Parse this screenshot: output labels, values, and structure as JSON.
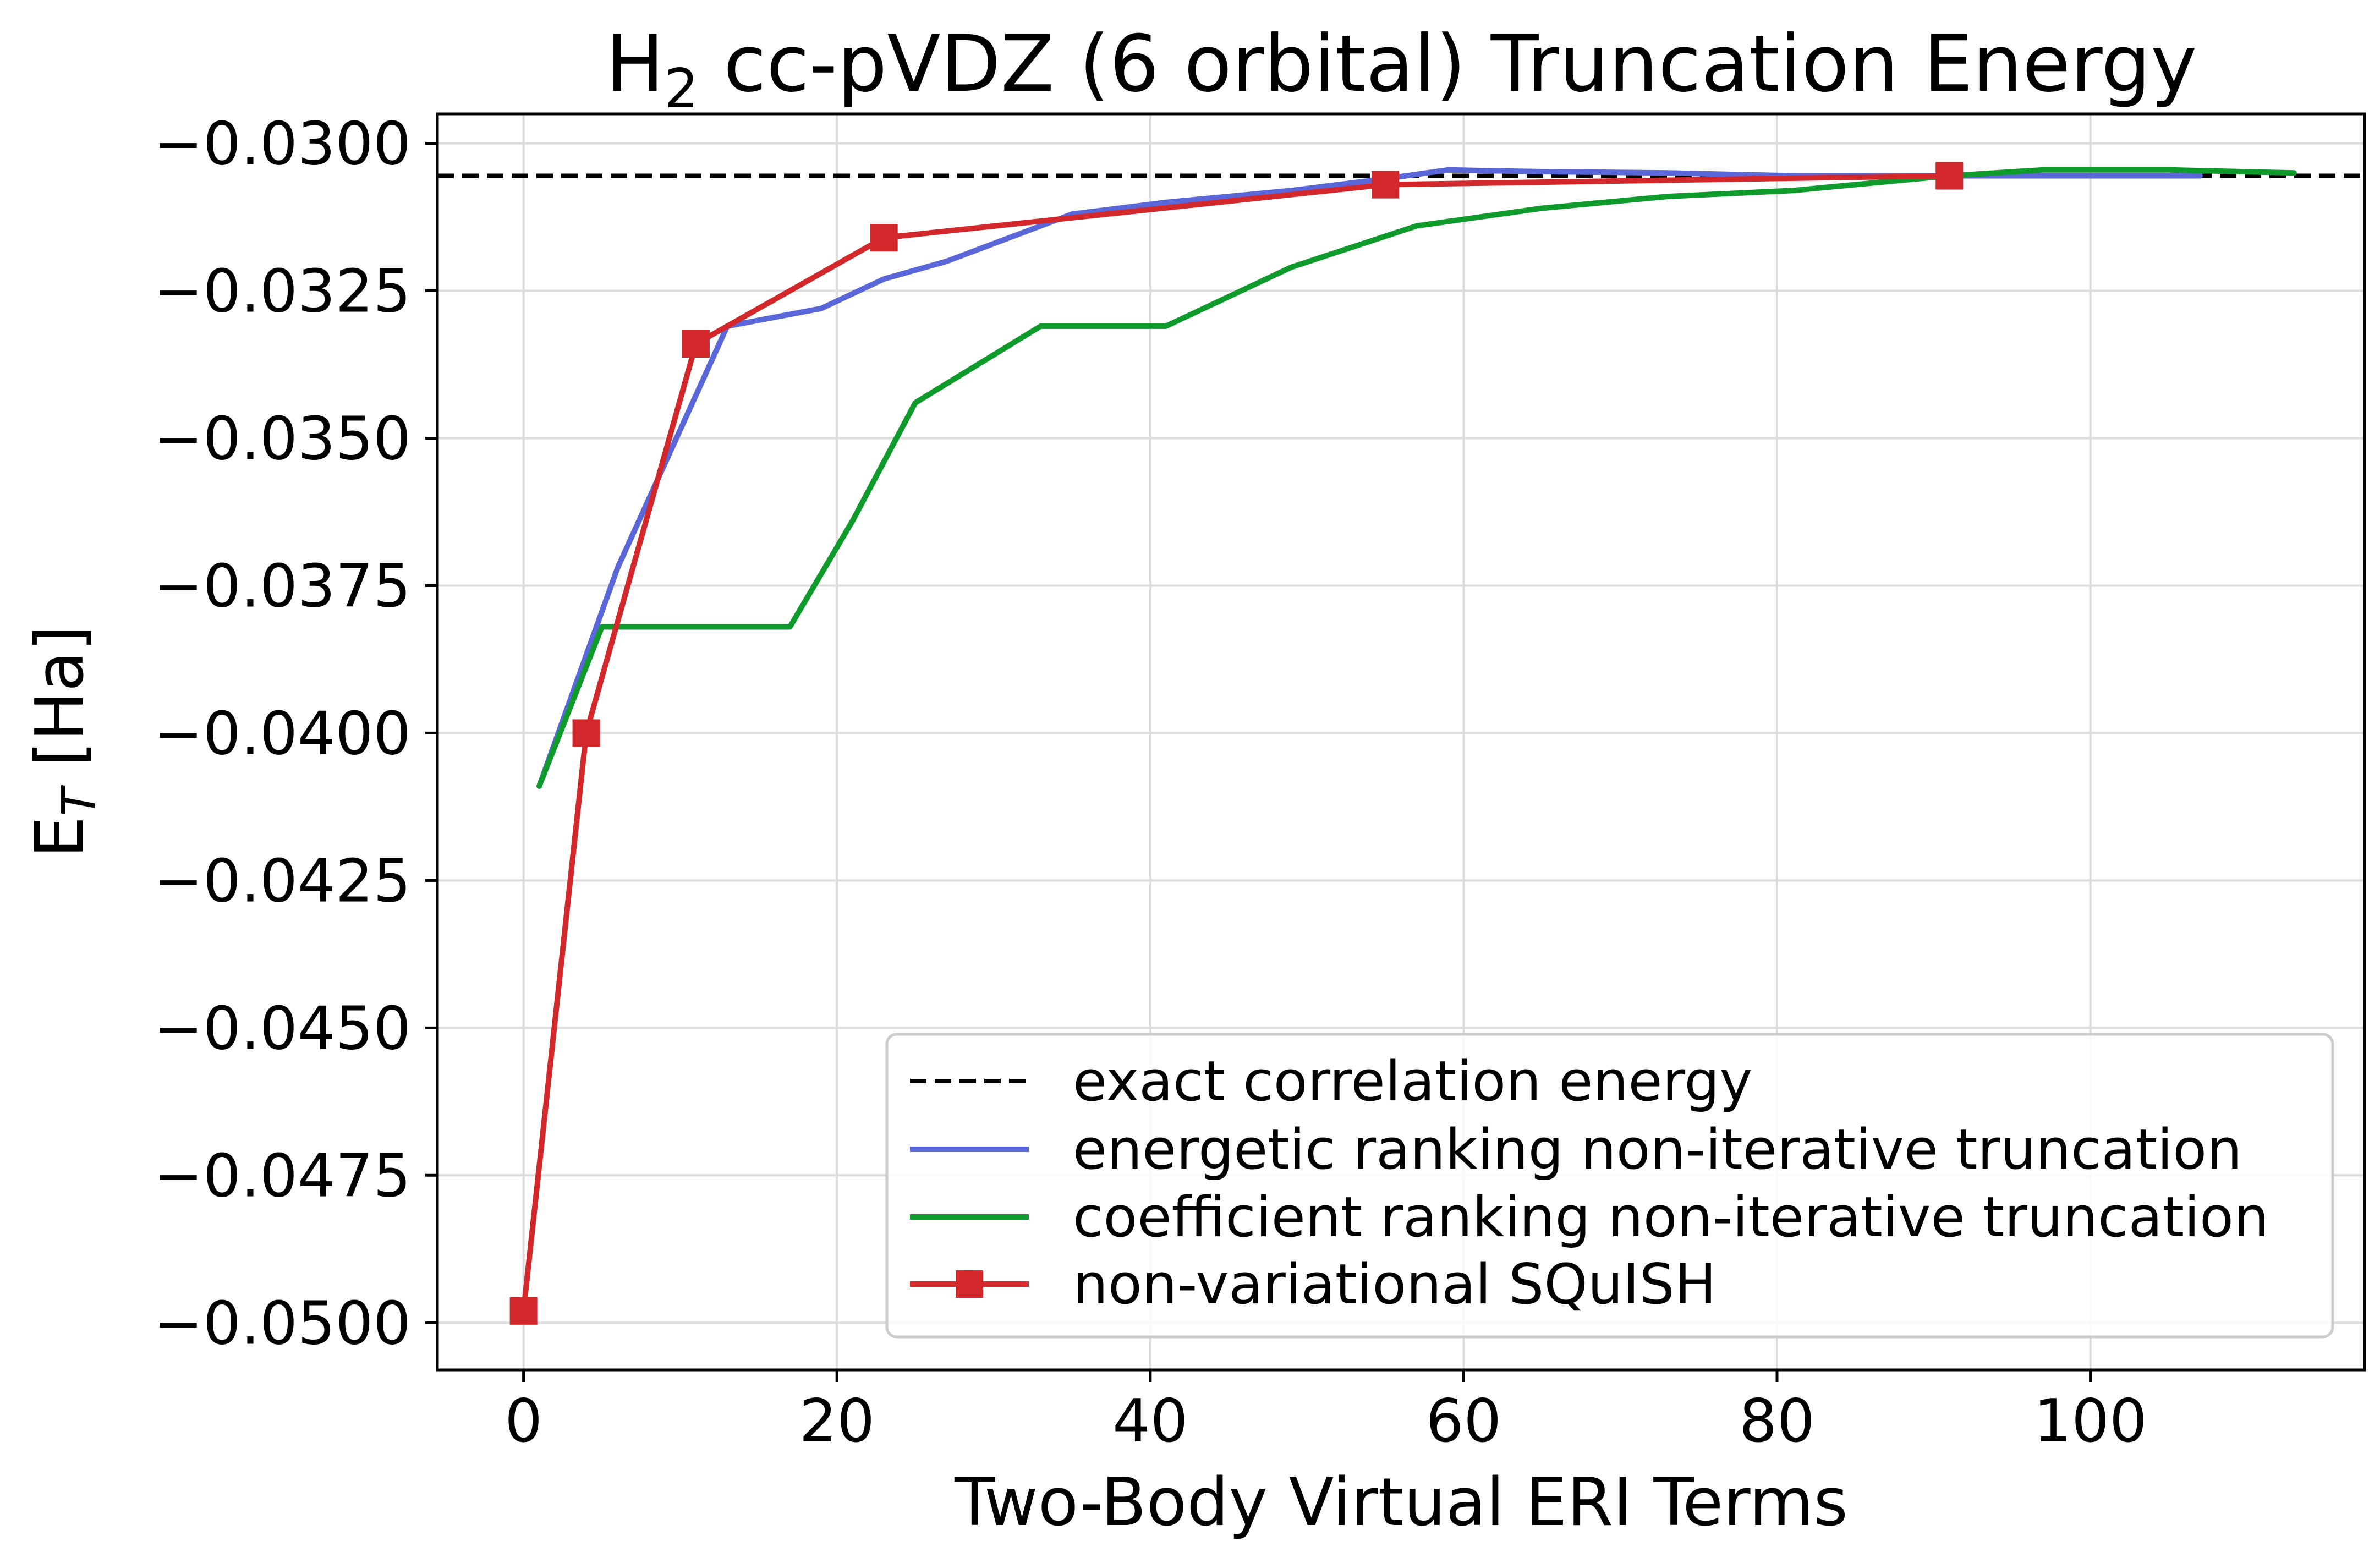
{
  "chart_data": {
    "type": "line",
    "title_main": "H",
    "title_sub": "2",
    "title_rest": " cc-pVDZ (6 orbital) Truncation Energy",
    "xlabel": "Two-Body Virtual ERI Terms",
    "ylabel_main": "E",
    "ylabel_sub": "T",
    "ylabel_rest": " [Ha]",
    "xlim": [
      -5.5,
      117.5
    ],
    "ylim": [
      -0.0508,
      -0.0295
    ],
    "x_ticks": [
      0,
      20,
      40,
      60,
      80,
      100
    ],
    "x_tick_labels": [
      "0",
      "20",
      "40",
      "60",
      "80",
      "100"
    ],
    "y_ticks": [
      -0.05,
      -0.0475,
      -0.045,
      -0.0425,
      -0.04,
      -0.0375,
      -0.035,
      -0.0325,
      -0.03
    ],
    "y_tick_labels": [
      "−0.0500",
      "−0.0475",
      "−0.0450",
      "−0.0425",
      "−0.0400",
      "−0.0375",
      "−0.0350",
      "−0.0325",
      "−0.0300"
    ],
    "grid": true,
    "legend_position": "lower-right",
    "reference_line": {
      "name": "exact correlation energy",
      "y": -0.03055,
      "color": "#000000",
      "style": "dashed"
    },
    "series": [
      {
        "name": "energetic ranking non-iterative truncation",
        "color": "#5a67d8",
        "marker": "none",
        "x": [
          1,
          6,
          13,
          19,
          23,
          27,
          35,
          41,
          49,
          55,
          59,
          65,
          73,
          81,
          91,
          107
        ],
        "y": [
          -0.0409,
          -0.0372,
          -0.0331,
          -0.0328,
          -0.0323,
          -0.032,
          -0.0312,
          -0.031,
          -0.0308,
          -0.0306,
          -0.03045,
          -0.03048,
          -0.0305,
          -0.03055,
          -0.03055,
          -0.03055
        ]
      },
      {
        "name": "coefficient ranking non-iterative truncation",
        "color": "#0f9a2c",
        "marker": "none",
        "x": [
          1,
          5,
          17,
          21,
          25,
          33,
          41,
          49,
          57,
          65,
          73,
          81,
          91,
          97,
          105,
          113
        ],
        "y": [
          -0.0409,
          -0.0382,
          -0.0382,
          -0.0364,
          -0.0344,
          -0.0331,
          -0.0331,
          -0.0321,
          -0.0314,
          -0.0311,
          -0.0309,
          -0.0308,
          -0.03055,
          -0.03045,
          -0.03045,
          -0.0305
        ]
      },
      {
        "name": "non-variational SQuISH",
        "color": "#d2282b",
        "marker": "square",
        "x": [
          0,
          4,
          11,
          23,
          55,
          91
        ],
        "y": [
          -0.0498,
          -0.04,
          -0.0334,
          -0.0316,
          -0.0307,
          -0.03055
        ]
      }
    ]
  }
}
